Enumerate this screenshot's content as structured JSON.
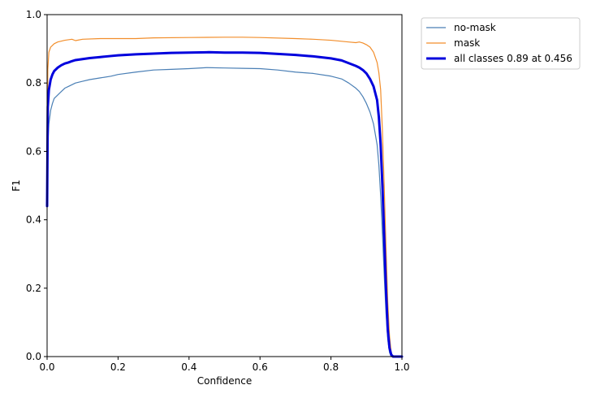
{
  "chart_data": {
    "type": "line",
    "xlabel": "Confidence",
    "ylabel": "F1",
    "xlim": [
      0,
      1
    ],
    "ylim": [
      0,
      1
    ],
    "x_ticks": [
      "0.0",
      "0.2",
      "0.4",
      "0.6",
      "0.8",
      "1.0"
    ],
    "y_ticks": [
      "0.0",
      "0.2",
      "0.4",
      "0.6",
      "0.8",
      "1.0"
    ],
    "grid": false,
    "legend_position": "outside-top-right",
    "series": [
      {
        "name": "no-mask",
        "color": "#4a7fb5",
        "line_width": "thin",
        "x": [
          0.0,
          0.002,
          0.005,
          0.01,
          0.015,
          0.02,
          0.03,
          0.04,
          0.05,
          0.06,
          0.07,
          0.08,
          0.1,
          0.12,
          0.15,
          0.18,
          0.2,
          0.25,
          0.3,
          0.35,
          0.4,
          0.45,
          0.5,
          0.55,
          0.6,
          0.65,
          0.7,
          0.75,
          0.8,
          0.83,
          0.85,
          0.87,
          0.88,
          0.89,
          0.9,
          0.91,
          0.92,
          0.93,
          0.935,
          0.94,
          0.945,
          0.95,
          0.955,
          0.96,
          0.965,
          0.97,
          0.975,
          0.98,
          0.99,
          1.0
        ],
        "values": [
          0.44,
          0.62,
          0.68,
          0.72,
          0.74,
          0.755,
          0.765,
          0.775,
          0.785,
          0.79,
          0.795,
          0.8,
          0.805,
          0.81,
          0.815,
          0.82,
          0.825,
          0.832,
          0.838,
          0.84,
          0.842,
          0.845,
          0.844,
          0.843,
          0.842,
          0.838,
          0.832,
          0.828,
          0.82,
          0.812,
          0.8,
          0.785,
          0.775,
          0.76,
          0.74,
          0.715,
          0.68,
          0.62,
          0.56,
          0.47,
          0.36,
          0.24,
          0.13,
          0.05,
          0.012,
          0.0,
          0.0,
          0.0,
          0.0,
          0.0
        ]
      },
      {
        "name": "mask",
        "color": "#f28e2b",
        "line_width": "thin",
        "x": [
          0.0,
          0.002,
          0.005,
          0.01,
          0.015,
          0.02,
          0.03,
          0.05,
          0.07,
          0.08,
          0.1,
          0.15,
          0.2,
          0.25,
          0.3,
          0.4,
          0.5,
          0.55,
          0.6,
          0.7,
          0.75,
          0.8,
          0.85,
          0.87,
          0.88,
          0.89,
          0.9,
          0.91,
          0.92,
          0.93,
          0.935,
          0.94,
          0.945,
          0.95,
          0.955,
          0.96,
          0.965,
          0.97,
          0.975,
          0.98,
          0.99,
          1.0
        ],
        "values": [
          0.44,
          0.84,
          0.89,
          0.905,
          0.91,
          0.915,
          0.92,
          0.925,
          0.928,
          0.924,
          0.928,
          0.93,
          0.93,
          0.93,
          0.932,
          0.933,
          0.934,
          0.934,
          0.933,
          0.93,
          0.928,
          0.925,
          0.92,
          0.918,
          0.92,
          0.917,
          0.912,
          0.905,
          0.89,
          0.86,
          0.83,
          0.78,
          0.66,
          0.5,
          0.32,
          0.16,
          0.06,
          0.01,
          0.0,
          0.0,
          0.0,
          0.0
        ]
      },
      {
        "name": "all classes 0.89 at 0.456",
        "color": "#0000dd",
        "line_width": "thick",
        "x": [
          0.0,
          0.002,
          0.005,
          0.01,
          0.015,
          0.02,
          0.03,
          0.04,
          0.05,
          0.06,
          0.07,
          0.08,
          0.1,
          0.12,
          0.15,
          0.18,
          0.2,
          0.25,
          0.3,
          0.35,
          0.4,
          0.456,
          0.5,
          0.55,
          0.6,
          0.65,
          0.7,
          0.75,
          0.8,
          0.83,
          0.85,
          0.87,
          0.88,
          0.89,
          0.9,
          0.91,
          0.92,
          0.93,
          0.935,
          0.94,
          0.945,
          0.95,
          0.955,
          0.96,
          0.965,
          0.97,
          0.975,
          0.98,
          0.99,
          1.0
        ],
        "values": [
          0.44,
          0.73,
          0.78,
          0.81,
          0.825,
          0.835,
          0.845,
          0.852,
          0.857,
          0.86,
          0.864,
          0.867,
          0.87,
          0.873,
          0.876,
          0.879,
          0.881,
          0.884,
          0.886,
          0.888,
          0.889,
          0.89,
          0.889,
          0.889,
          0.888,
          0.885,
          0.882,
          0.878,
          0.872,
          0.866,
          0.858,
          0.85,
          0.845,
          0.838,
          0.828,
          0.812,
          0.79,
          0.75,
          0.7,
          0.62,
          0.5,
          0.35,
          0.2,
          0.08,
          0.025,
          0.005,
          0.0,
          0.0,
          0.0,
          0.0
        ]
      }
    ]
  }
}
